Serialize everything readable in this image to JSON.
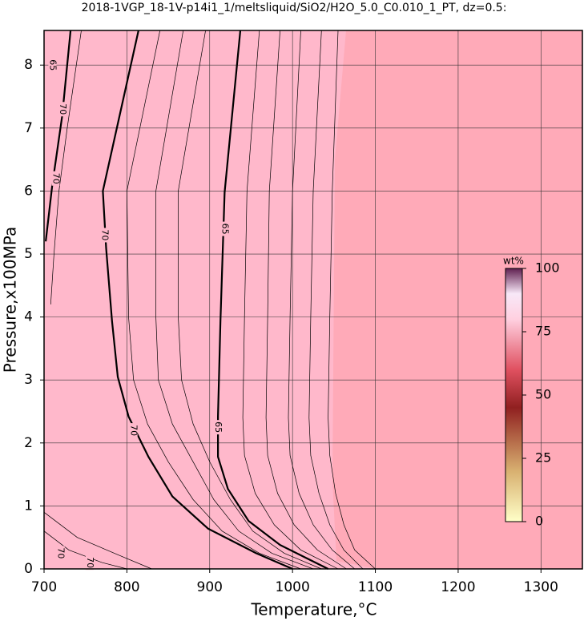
{
  "chart_data": {
    "type": "contour",
    "title": "2018-1VGP_18-1V-p14i1_1/meltsliquid/SiO2/H2O_5.0_C0.010_1_PT, dz=0.5:",
    "xlabel": "Temperature,°C",
    "ylabel": "Pressure,x100MPa",
    "xlim": [
      700,
      1350
    ],
    "ylim": [
      0,
      8.55
    ],
    "xticks": [
      700,
      800,
      900,
      1000,
      1100,
      1200,
      1300
    ],
    "yticks": [
      0,
      1,
      2,
      3,
      4,
      5,
      6,
      7,
      8
    ],
    "grid": true,
    "series": [
      {
        "name": "70",
        "width": 2.2,
        "x": [
          814,
          771,
          775,
          782,
          789,
          802,
          826,
          855,
          898,
          956,
          1000
        ],
        "y": [
          8.55,
          6.0,
          5.09,
          3.94,
          3.05,
          2.42,
          1.78,
          1.15,
          0.64,
          0.25,
          0
        ]
      },
      {
        "name": "65",
        "width": 2.2,
        "x": [
          937,
          918,
          913,
          910,
          910,
          922,
          947,
          985,
          1043
        ],
        "y": [
          8.55,
          5.98,
          3.94,
          2.42,
          1.78,
          1.27,
          0.76,
          0.38,
          0
        ]
      },
      {
        "name": "70",
        "width": 2.2,
        "x": [
          732,
          722,
          710,
          702
        ],
        "y": [
          8.55,
          7.2,
          6.1,
          5.2
        ]
      },
      {
        "width": 0.7,
        "x": [
          840,
          800,
          802,
          808,
          825,
          850,
          880,
          915,
          960,
          1010
        ],
        "y": [
          8.55,
          6.0,
          4.0,
          3.0,
          2.3,
          1.7,
          1.1,
          0.6,
          0.25,
          0
        ]
      },
      {
        "width": 0.7,
        "x": [
          868,
          835,
          835,
          838,
          855,
          880,
          905,
          935,
          975,
          1025
        ],
        "y": [
          8.55,
          6.0,
          4.0,
          3.0,
          2.3,
          1.7,
          1.1,
          0.6,
          0.25,
          0
        ]
      },
      {
        "width": 0.7,
        "x": [
          895,
          862,
          862,
          866,
          880,
          900,
          925,
          952,
          990,
          1035
        ],
        "y": [
          8.55,
          6.0,
          4.0,
          3.0,
          2.3,
          1.7,
          1.1,
          0.6,
          0.25,
          0
        ]
      },
      {
        "width": 0.7,
        "x": [
          960,
          945,
          942,
          940,
          942,
          955,
          978,
          1010,
          1055
        ],
        "y": [
          8.55,
          6.0,
          4.0,
          2.4,
          1.8,
          1.2,
          0.7,
          0.3,
          0
        ]
      },
      {
        "width": 0.7,
        "x": [
          985,
          972,
          970,
          968,
          970,
          982,
          1002,
          1030,
          1065
        ],
        "y": [
          8.55,
          6.0,
          4.0,
          2.4,
          1.8,
          1.2,
          0.7,
          0.3,
          0
        ]
      },
      {
        "width": 0.7,
        "x": [
          1010,
          1000,
          997,
          995,
          997,
          1008,
          1025,
          1048,
          1075
        ],
        "y": [
          8.55,
          6.0,
          4.0,
          2.4,
          1.8,
          1.2,
          0.7,
          0.3,
          0
        ]
      },
      {
        "width": 0.7,
        "x": [
          1035,
          1025,
          1022,
          1020,
          1022,
          1032,
          1045,
          1062,
          1085
        ],
        "y": [
          8.55,
          6.0,
          4.0,
          2.4,
          1.8,
          1.2,
          0.7,
          0.3,
          0
        ]
      },
      {
        "width": 0.7,
        "x": [
          1055,
          1048,
          1045,
          1043,
          1045,
          1052,
          1062,
          1075,
          1100
        ],
        "y": [
          8.55,
          6.0,
          4.0,
          2.4,
          1.8,
          1.2,
          0.7,
          0.3,
          0
        ]
      },
      {
        "width": 0.7,
        "x": [
          745,
          728,
          718,
          712,
          708
        ],
        "y": [
          8.55,
          7.0,
          6.0,
          5.0,
          4.2
        ]
      },
      {
        "width": 0.7,
        "x": [
          700,
          740,
          790,
          830
        ],
        "y": [
          0.9,
          0.5,
          0.22,
          0
        ]
      },
      {
        "width": 0.7,
        "x": [
          700,
          730,
          770,
          800
        ],
        "y": [
          0.6,
          0.3,
          0.1,
          0
        ]
      }
    ],
    "contour_labels": [
      {
        "text": "65",
        "x": 918,
        "y": 5.4
      },
      {
        "text": "65",
        "x": 910,
        "y": 2.25
      },
      {
        "text": "70",
        "x": 773,
        "y": 5.3
      },
      {
        "text": "70",
        "x": 808,
        "y": 2.2
      },
      {
        "text": "70",
        "x": 714,
        "y": 6.2
      },
      {
        "text": "70",
        "x": 722,
        "y": 7.3
      },
      {
        "text": "65",
        "x": 710,
        "y": 8.0
      },
      {
        "text": "70",
        "x": 720,
        "y": 0.25
      },
      {
        "text": "70",
        "x": 755,
        "y": 0.1
      }
    ],
    "colorbar": {
      "label": "wt%",
      "lim": [
        0,
        100
      ],
      "ticks": [
        0,
        25,
        50,
        75,
        100
      ]
    }
  }
}
